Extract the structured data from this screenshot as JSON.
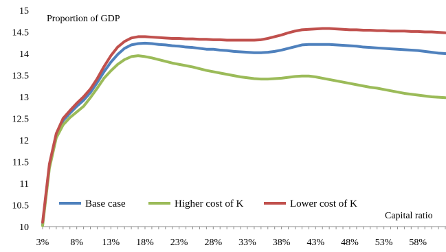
{
  "chart_data": {
    "type": "line",
    "ylabel": "Proportion of GDP",
    "xlabel": "Capital ratio",
    "ylim": [
      10,
      15
    ],
    "yticks": [
      "10",
      "10.5",
      "11",
      "11.5",
      "12",
      "12.5",
      "13",
      "13.5",
      "14",
      "14.5",
      "15"
    ],
    "x": [
      3,
      4,
      5,
      6,
      7,
      8,
      9,
      10,
      11,
      12,
      13,
      14,
      15,
      16,
      17,
      18,
      19,
      20,
      21,
      22,
      23,
      24,
      25,
      26,
      27,
      28,
      29,
      30,
      31,
      32,
      33,
      34,
      35,
      36,
      37,
      38,
      39,
      40,
      41,
      42,
      43,
      44,
      45,
      46,
      47,
      48,
      49,
      50,
      51,
      52,
      53,
      54,
      55,
      56,
      57,
      58,
      59,
      60,
      61,
      62
    ],
    "xtick_values": [
      3,
      8,
      13,
      18,
      23,
      28,
      33,
      38,
      43,
      48,
      53,
      58
    ],
    "xtick_labels": [
      "3%",
      "8%",
      "13%",
      "18%",
      "23%",
      "28%",
      "33%",
      "38%",
      "43%",
      "48%",
      "53%",
      "58%"
    ],
    "grid": false,
    "legend_position": "bottom-left",
    "series": [
      {
        "name": "Base case",
        "color": "#4F81BD",
        "values": [
          10.05,
          11.4,
          12.1,
          12.45,
          12.62,
          12.78,
          12.92,
          13.1,
          13.33,
          13.58,
          13.8,
          13.98,
          14.12,
          14.2,
          14.23,
          14.24,
          14.23,
          14.21,
          14.2,
          14.18,
          14.17,
          14.15,
          14.14,
          14.12,
          14.1,
          14.1,
          14.08,
          14.07,
          14.05,
          14.04,
          14.03,
          14.02,
          14.02,
          14.03,
          14.05,
          14.08,
          14.12,
          14.16,
          14.2,
          14.21,
          14.21,
          14.21,
          14.21,
          14.2,
          14.19,
          14.18,
          14.17,
          14.15,
          14.14,
          14.13,
          14.12,
          14.11,
          14.1,
          14.09,
          14.08,
          14.07,
          14.05,
          14.03,
          14.01,
          14.0
        ]
      },
      {
        "name": "Higher cost of K",
        "color": "#9BBB59",
        "values": [
          10.02,
          11.35,
          12.05,
          12.35,
          12.52,
          12.65,
          12.78,
          12.98,
          13.2,
          13.43,
          13.6,
          13.75,
          13.86,
          13.93,
          13.95,
          13.93,
          13.9,
          13.86,
          13.82,
          13.78,
          13.75,
          13.72,
          13.69,
          13.65,
          13.61,
          13.58,
          13.55,
          13.52,
          13.49,
          13.46,
          13.44,
          13.42,
          13.41,
          13.41,
          13.42,
          13.43,
          13.45,
          13.47,
          13.48,
          13.48,
          13.46,
          13.43,
          13.4,
          13.37,
          13.34,
          13.31,
          13.28,
          13.25,
          13.22,
          13.2,
          13.17,
          13.14,
          13.11,
          13.08,
          13.06,
          13.04,
          13.02,
          13.0,
          12.99,
          12.98
        ]
      },
      {
        "name": "Lower cost of K",
        "color": "#C0504D",
        "values": [
          10.1,
          11.45,
          12.15,
          12.5,
          12.68,
          12.85,
          13.0,
          13.18,
          13.42,
          13.7,
          13.95,
          14.15,
          14.28,
          14.36,
          14.39,
          14.39,
          14.38,
          14.37,
          14.36,
          14.35,
          14.35,
          14.34,
          14.34,
          14.33,
          14.33,
          14.32,
          14.32,
          14.31,
          14.31,
          14.31,
          14.31,
          14.31,
          14.32,
          14.35,
          14.39,
          14.43,
          14.48,
          14.52,
          14.55,
          14.56,
          14.57,
          14.58,
          14.58,
          14.57,
          14.56,
          14.55,
          14.55,
          14.54,
          14.54,
          14.53,
          14.53,
          14.52,
          14.52,
          14.52,
          14.51,
          14.51,
          14.5,
          14.5,
          14.49,
          14.48
        ]
      }
    ]
  }
}
